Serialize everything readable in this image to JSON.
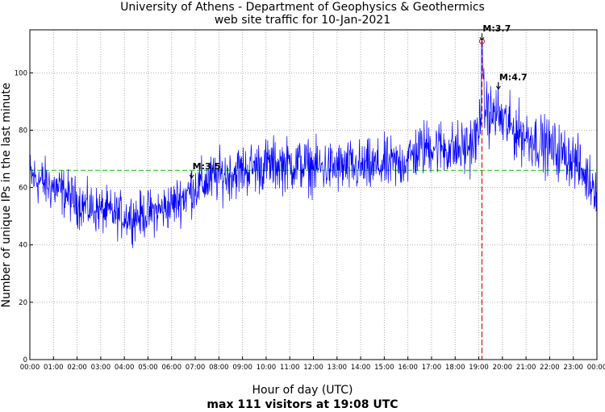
{
  "chart_data": {
    "type": "line",
    "title": "University of Athens - Department of Geophysics & Geothermics",
    "subtitle": "web site traffic for 10-Jan-2021",
    "xlabel": "Hour of day (UTC)",
    "ylabel": "Number of unique IPs in the last minute",
    "footer": "max 111 visitors at 19:08 UTC",
    "xlim": [
      0,
      24
    ],
    "ylim": [
      0,
      115
    ],
    "x_ticks": [
      "00:00",
      "01:00",
      "02:00",
      "03:00",
      "04:00",
      "05:00",
      "06:00",
      "07:00",
      "08:00",
      "09:00",
      "10:00",
      "11:00",
      "12:00",
      "13:00",
      "14:00",
      "15:00",
      "16:00",
      "17:00",
      "18:00",
      "19:00",
      "20:00",
      "21:00",
      "22:00",
      "23:00",
      "00:00"
    ],
    "y_ticks": [
      0,
      20,
      40,
      60,
      80,
      100
    ],
    "grid": true,
    "series": [
      {
        "color": "#0000ff",
        "x": [
          0,
          0.5,
          1,
          1.5,
          2,
          2.5,
          3,
          3.5,
          4,
          4.5,
          5,
          5.5,
          6,
          6.5,
          7,
          7.5,
          8,
          8.5,
          9,
          9.5,
          10,
          10.5,
          11,
          11.5,
          12,
          12.5,
          13,
          13.5,
          14,
          14.5,
          15,
          15.5,
          16,
          16.5,
          17,
          17.5,
          18,
          18.5,
          19,
          19.1,
          19.3,
          19.5,
          19.8,
          20,
          20.5,
          21,
          21.5,
          22,
          22.5,
          23,
          23.5,
          24
        ],
        "y": [
          64,
          62,
          60,
          58,
          55,
          53,
          52,
          51,
          50,
          50,
          51,
          52,
          54,
          57,
          60,
          62,
          64,
          65,
          66,
          67,
          68,
          68,
          68,
          68,
          67,
          67,
          67,
          67,
          67,
          67,
          68,
          68,
          70,
          73,
          75,
          74,
          73,
          74,
          78,
          92,
          88,
          85,
          86,
          83,
          80,
          78,
          76,
          74,
          72,
          70,
          64,
          60
        ]
      }
    ],
    "reference_line": {
      "y": 66,
      "color": "#00cc00"
    },
    "max_marker": {
      "x": 19.133,
      "y": 111,
      "color": "#ff0000"
    },
    "annotations": [
      {
        "text": "M:3.7",
        "x": 19.133,
        "y": 111
      },
      {
        "text": "M:4.7",
        "x": 19.83,
        "y": 94
      },
      {
        "text": "M:3.5",
        "x": 6.85,
        "y": 63
      }
    ]
  }
}
